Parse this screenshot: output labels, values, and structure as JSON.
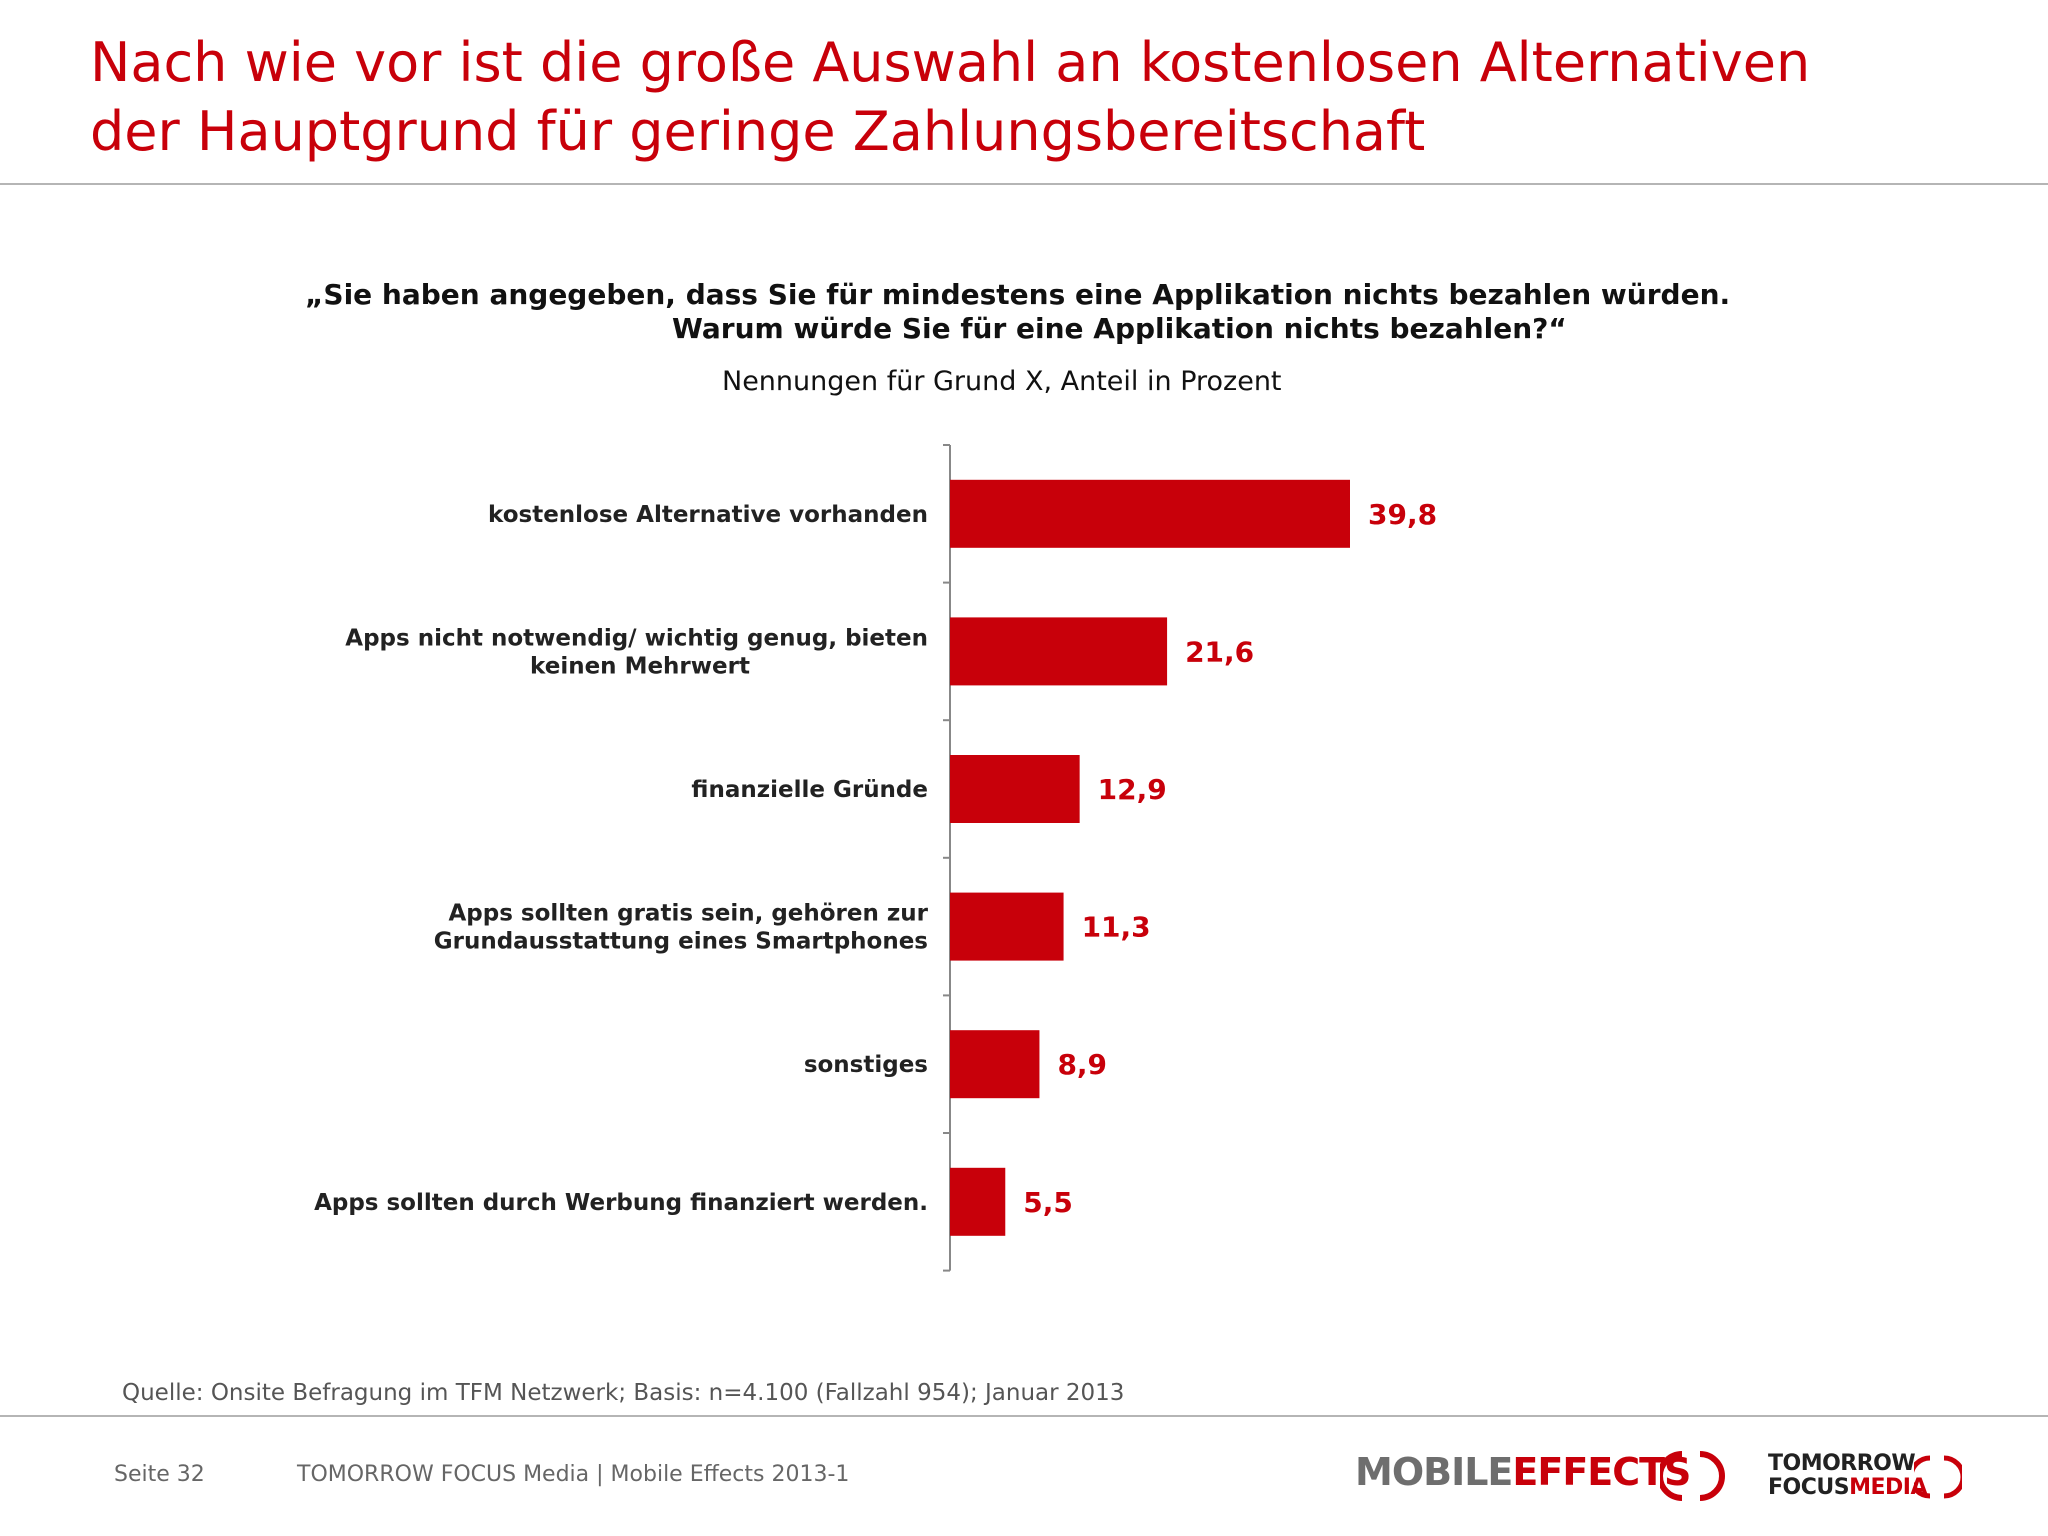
{
  "header": {
    "title_line1": "Nach wie vor ist die große Auswahl an kostenlosen Alternativen",
    "title_line2": "der Hauptgrund für geringe Zahlungsbereitschaft"
  },
  "question": {
    "line1": "„Sie haben angegeben, dass Sie für mindestens eine Applikation nichts bezahlen würden.",
    "line2": "Warum würde Sie für eine Applikation nichts bezahlen?“"
  },
  "chart_data": {
    "type": "bar",
    "orientation": "horizontal",
    "subtitle": "Nennungen für Grund X, Anteil in Prozent",
    "categories": [
      [
        "kostenlose Alternative vorhanden"
      ],
      [
        "Apps nicht notwendig/ wichtig genug, bieten",
        "keinen Mehrwert"
      ],
      [
        "finanzielle Gründe"
      ],
      [
        "Apps sollten gratis sein, gehören zur",
        "Grundausstattung eines Smartphones"
      ],
      [
        "sonstiges"
      ],
      [
        "Apps sollten durch Werbung finanziert werden."
      ]
    ],
    "values": [
      39.8,
      21.6,
      12.9,
      11.3,
      8.9,
      5.5
    ],
    "value_labels": [
      "39,8",
      "21,6",
      "12,9",
      "11,3",
      "8,9",
      "5,5"
    ],
    "xlim": [
      0,
      100
    ],
    "grid": false,
    "bar_color": "#c8000a",
    "label_color": "#c8000a"
  },
  "footer": {
    "source": "Quelle: Onsite Befragung im TFM Netzwerk; Basis: n=4.100 (Fallzahl 954); Januar 2013",
    "page": "Seite 32",
    "company_line": "TOMORROW FOCUS Media  |  Mobile Effects 2013-1",
    "logo_mobile": "MOBILE",
    "logo_effects": "EFFECTS",
    "logo_tomorrow": "TOMORROW",
    "logo_focus": "FOCUS",
    "logo_media": "MEDIA"
  },
  "colors": {
    "accent": "#c8000a",
    "rule": "#b5b5b5"
  }
}
